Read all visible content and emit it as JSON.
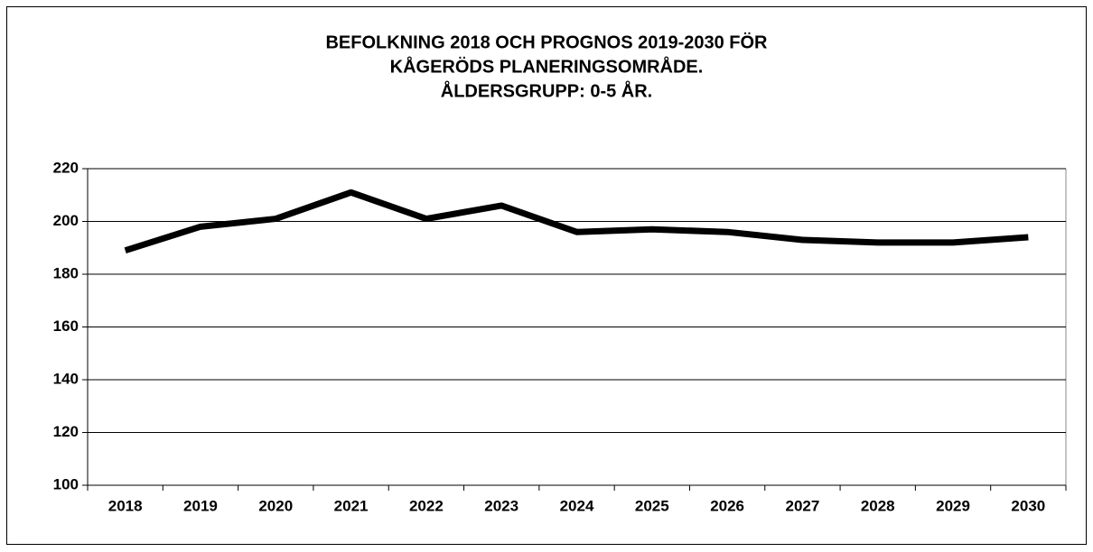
{
  "chart_data": {
    "type": "line",
    "title": [
      "BEFOLKNING 2018 OCH PROGNOS 2019-2030 FÖR",
      "KÅGERÖDS PLANERINGSOMRÅDE.",
      "ÅLDERSGRUPP: 0-5 ÅR."
    ],
    "categories": [
      "2018",
      "2019",
      "2020",
      "2021",
      "2022",
      "2023",
      "2024",
      "2025",
      "2026",
      "2027",
      "2028",
      "2029",
      "2030"
    ],
    "values": [
      189,
      198,
      201,
      211,
      201,
      206,
      196,
      197,
      196,
      193,
      192,
      192,
      194
    ],
    "color": "#000000",
    "ylim": [
      100,
      220
    ],
    "yticks": [
      100,
      120,
      140,
      160,
      180,
      200,
      220
    ],
    "grid": true
  }
}
